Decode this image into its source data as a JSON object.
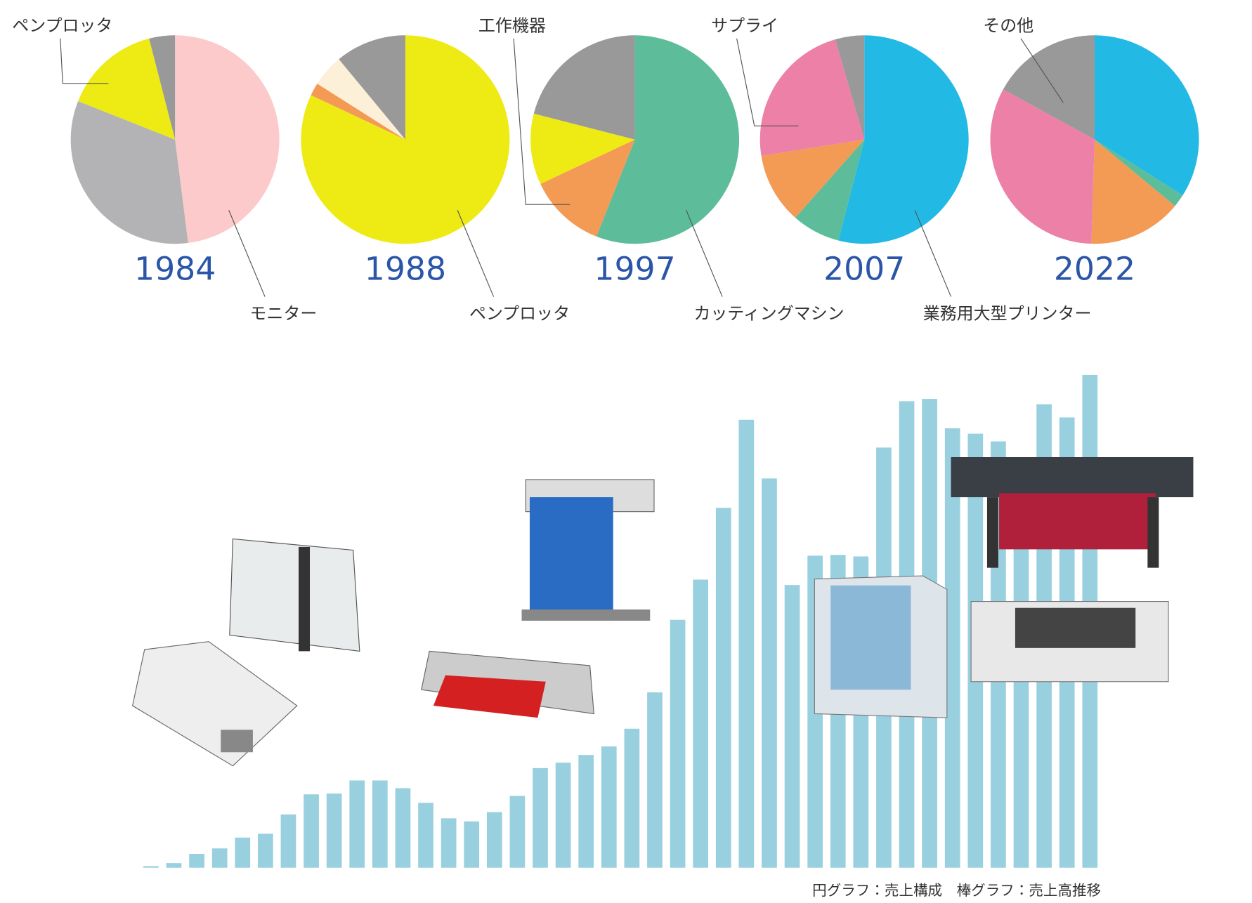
{
  "chart_data": [
    {
      "type": "pie",
      "title": "1984",
      "categories": [
        "モニター",
        null,
        "ペンプロッタ",
        null
      ],
      "values": [
        48,
        33,
        15,
        4
      ],
      "colors": [
        "#fccaca",
        "#b3b3b5",
        "#eeea14",
        "#999999"
      ]
    },
    {
      "type": "pie",
      "title": "1988",
      "categories": [
        "ペンプロッタ",
        null,
        null,
        null
      ],
      "values": [
        82,
        2,
        5,
        11
      ],
      "colors": [
        "#eeea14",
        "#f39a55",
        "#fdf0d8",
        "#999999"
      ]
    },
    {
      "type": "pie",
      "title": "1997",
      "categories": [
        "カッティングマシン",
        "工作機器",
        null,
        null
      ],
      "values": [
        56,
        12,
        11,
        21
      ],
      "colors": [
        "#5dbd9a",
        "#f39a55",
        "#eeea14",
        "#999999"
      ]
    },
    {
      "type": "pie",
      "title": "2007",
      "categories": [
        "業務用大型プリンター",
        null,
        null,
        "サプライ",
        null
      ],
      "values": [
        54,
        7.5,
        11,
        23,
        4.5
      ],
      "colors": [
        "#22b9e5",
        "#5dbd9a",
        "#f39a55",
        "#ec80a6",
        "#999999"
      ]
    },
    {
      "type": "pie",
      "title": "2022",
      "categories": [
        null,
        null,
        null,
        null,
        "その他"
      ],
      "values": [
        34,
        2,
        14.5,
        32.5,
        17
      ],
      "colors": [
        "#22b9e5",
        "#5dbd9a",
        "#f39a55",
        "#ec80a6",
        "#999999"
      ]
    },
    {
      "type": "bar",
      "note": "円グラフ：売上構成　棒グラフ：売上高推移",
      "color": "#99d0df",
      "ylim": [
        0,
        650
      ],
      "values": [
        2,
        6,
        18,
        25,
        39,
        44,
        69,
        95,
        96,
        113,
        113,
        103,
        84,
        64,
        60,
        72,
        93,
        129,
        136,
        146,
        157,
        180,
        227,
        321,
        373,
        466,
        580,
        504,
        366,
        404,
        405,
        403,
        544,
        604,
        607,
        569,
        562,
        552,
        527,
        600,
        583,
        638
      ]
    }
  ]
}
